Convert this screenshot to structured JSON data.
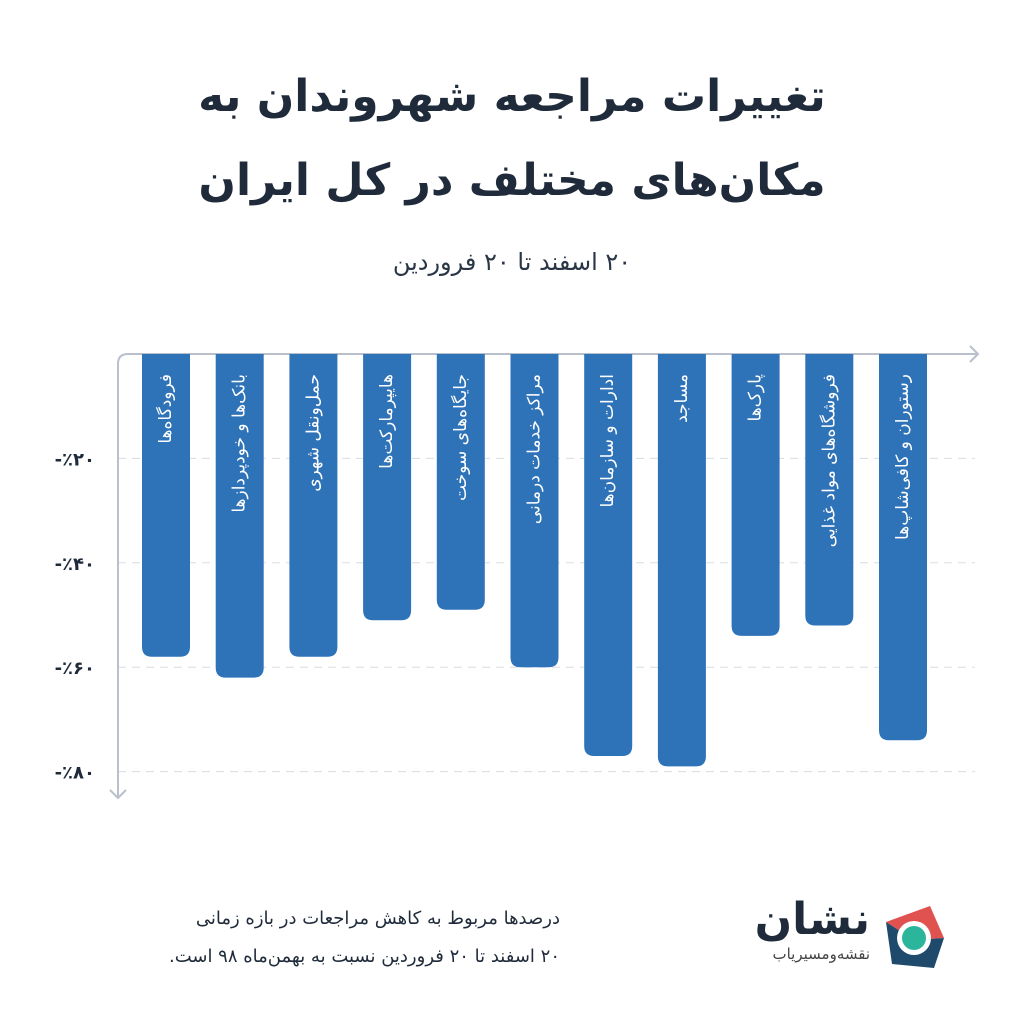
{
  "title": {
    "line1": "تغییرات مراجعه شهروندان به",
    "line2": "مکان‌های مختلف در کل ایران"
  },
  "subtitle": "۲۰ اسفند تا ۲۰ فروردین",
  "chart_data": {
    "type": "bar",
    "orientation": "vertical-downward",
    "categories": [
      "فرودگاه‌ها",
      "بانک‌ها و خودپردازها",
      "حمل‌ونقل شهری",
      "هایپرمارکت‌ها",
      "جایگاه‌های سوخت",
      "مراکز خدمات درمانی",
      "ادارات و سازمان‌ها",
      "مساجد",
      "پارک‌ها",
      "فروشگاه‌های مواد غذایی",
      "رستوران و کافی‌شاپ‌ها"
    ],
    "values": [
      -58,
      -62,
      -58,
      -51,
      -49,
      -60,
      -77,
      -79,
      -54,
      -52,
      -74
    ],
    "ylim": [
      -85,
      0
    ],
    "yticks": [
      -20,
      -40,
      -60,
      -80
    ],
    "ytick_labels": [
      "-٪۲۰",
      "-٪۴۰",
      "-٪۶۰",
      "-٪۸۰"
    ],
    "grid": true,
    "bar_color": "#2e72b8"
  },
  "note": {
    "line1": "درصدها مربوط به کاهش مراجعات در بازه زمانی",
    "line2": "۲۰ اسفند تا ۲۰ فروردین نسبت به بهمن‌ماه ۹۸ است."
  },
  "brand": {
    "name": "نشان",
    "tagline": "نقشه‌ومسیریاب",
    "colors": {
      "red": "#e0524f",
      "navy": "#1f4a6b",
      "teal": "#2bb59a"
    }
  }
}
